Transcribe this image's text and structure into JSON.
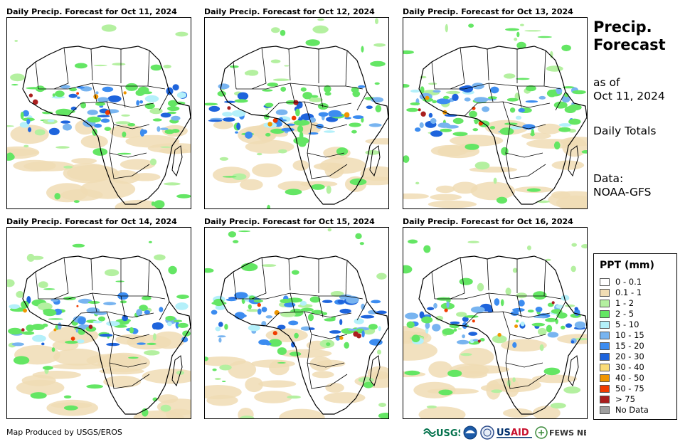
{
  "panels": [
    {
      "title": "Daily Precip. Forecast for Oct 11, 2024"
    },
    {
      "title": "Daily Precip. Forecast for Oct 12, 2024"
    },
    {
      "title": "Daily Precip. Forecast for Oct 13, 2024"
    },
    {
      "title": "Daily Precip. Forecast for Oct 14, 2024"
    },
    {
      "title": "Daily Precip. Forecast for Oct 15, 2024"
    },
    {
      "title": "Daily Precip. Forecast for Oct 16, 2024"
    }
  ],
  "side": {
    "title_line1": "Precip.",
    "title_line2": "Forecast",
    "asof_line1": "as of",
    "asof_line2": "Oct 11, 2024",
    "totals": "Daily Totals",
    "data_line1": "Data:",
    "data_line2": "NOAA-GFS"
  },
  "legend": {
    "title": "PPT (mm)",
    "items": [
      {
        "label": "0 - 0.1",
        "color": "#ffffff"
      },
      {
        "label": "0.1 - 1",
        "color": "#f0dcb4"
      },
      {
        "label": "1 - 2",
        "color": "#b4f0a0"
      },
      {
        "label": "2 - 5",
        "color": "#64e664"
      },
      {
        "label": "5 - 10",
        "color": "#b4f0fa"
      },
      {
        "label": "10 - 15",
        "color": "#78b4f0"
      },
      {
        "label": "15 - 20",
        "color": "#3c8cf0"
      },
      {
        "label": "20 - 30",
        "color": "#1e64dc"
      },
      {
        "label": "30 - 40",
        "color": "#fadc78"
      },
      {
        "label": "40 - 50",
        "color": "#f09600"
      },
      {
        "label": "50 - 75",
        "color": "#f03c00"
      },
      {
        "label": "> 75",
        "color": "#aa1e1e"
      },
      {
        "label": "No Data",
        "color": "#a0a0a0"
      }
    ]
  },
  "footer": {
    "text": "Map Produced by USGS/EROS"
  },
  "logos": {
    "usgs": "USGS",
    "usaid": "USAID",
    "fewsnet": "FEWS NET"
  }
}
